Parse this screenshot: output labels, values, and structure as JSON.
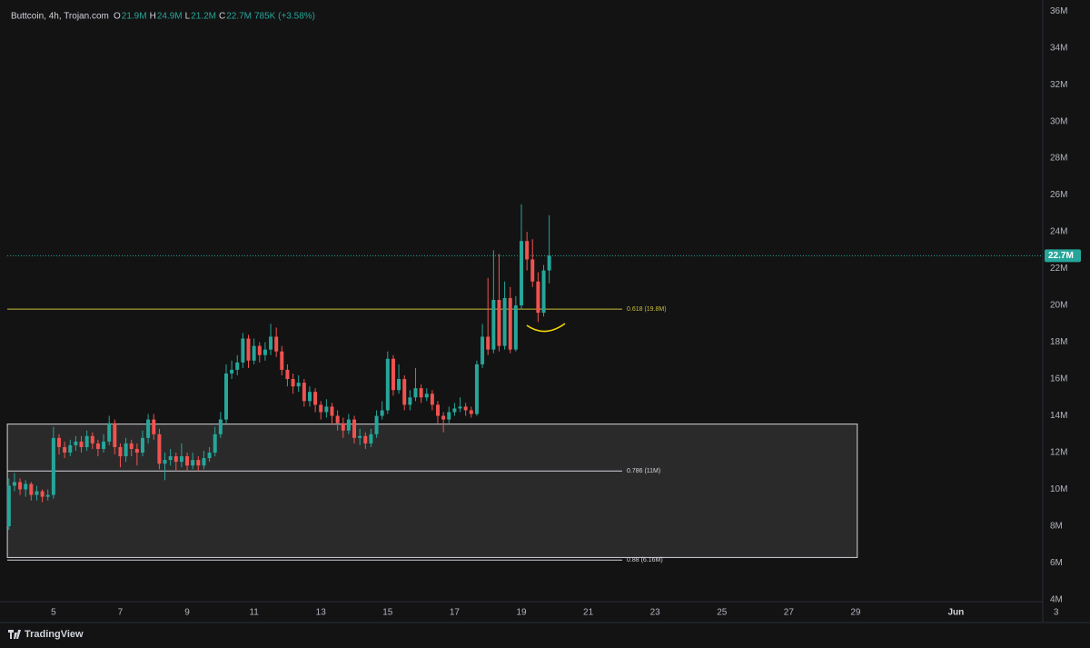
{
  "header": {
    "symbol": "Buttcoin, 4h, Trojan.com",
    "ohlc": [
      {
        "name": "O",
        "label": "21.9M"
      },
      {
        "name": "H",
        "label": "24.9M"
      },
      {
        "name": "L",
        "label": "21.2M"
      },
      {
        "name": "C",
        "label": "22.7M"
      }
    ],
    "change": "785K (+3.58%)"
  },
  "branding": "TradingView",
  "chart_data": {
    "type": "candlestick",
    "up_color": "#26a69a",
    "down_color": "#ef5350",
    "x": [
      3.667,
      3.833,
      4,
      4.167,
      4.333,
      4.5,
      4.667,
      4.833,
      5,
      5.167,
      5.333,
      5.5,
      5.667,
      5.833,
      6,
      6.167,
      6.333,
      6.5,
      6.667,
      6.833,
      7,
      7.167,
      7.333,
      7.5,
      7.667,
      7.833,
      8,
      8.167,
      8.333,
      8.5,
      8.667,
      8.833,
      9,
      9.167,
      9.333,
      9.5,
      9.667,
      9.833,
      10,
      10.167,
      10.333,
      10.5,
      10.667,
      10.833,
      11,
      11.167,
      11.333,
      11.5,
      11.667,
      11.833,
      12,
      12.167,
      12.333,
      12.5,
      12.667,
      12.833,
      13,
      13.167,
      13.333,
      13.5,
      13.667,
      13.833,
      14,
      14.167,
      14.333,
      14.5,
      14.667,
      14.833,
      15,
      15.167,
      15.333,
      15.5,
      15.667,
      15.833,
      16,
      16.167,
      16.333,
      16.5,
      16.667,
      16.833,
      17,
      17.167,
      17.333,
      17.5,
      17.667,
      17.833,
      18,
      18.167,
      18.333,
      18.5,
      18.667,
      18.833,
      19,
      19.167,
      19.333,
      19.5,
      19.667,
      19.833
    ],
    "open": [
      8.0,
      10.2,
      10.4,
      10.0,
      10.3,
      9.7,
      9.9,
      9.6,
      9.7,
      12.8,
      12.3,
      12.0,
      12.4,
      12.6,
      12.3,
      12.9,
      12.5,
      12.2,
      12.6,
      13.6,
      12.3,
      11.8,
      12.5,
      12.2,
      12.0,
      12.8,
      13.8,
      13.0,
      11.4,
      11.6,
      11.8,
      11.5,
      11.8,
      11.3,
      11.6,
      11.3,
      11.7,
      12.0,
      13.0,
      13.8,
      16.3,
      16.5,
      16.9,
      18.2,
      17.0,
      17.8,
      17.3,
      17.6,
      18.3,
      17.5,
      16.5,
      16.0,
      15.6,
      15.8,
      14.8,
      15.3,
      14.6,
      14.2,
      14.5,
      14.0,
      13.6,
      13.2,
      13.8,
      12.8,
      12.9,
      12.5,
      13.0,
      14.0,
      14.3,
      17.1,
      15.4,
      16.0,
      14.6,
      15.0,
      15.5,
      15.0,
      15.2,
      14.6,
      14.0,
      13.8,
      14.2,
      14.4,
      14.5,
      14.3,
      14.1,
      16.8,
      18.3,
      17.6,
      20.3,
      17.8,
      20.4,
      17.6,
      20.0,
      23.5,
      22.5,
      21.3,
      19.6,
      21.9
    ],
    "high": [
      10.6,
      10.9,
      10.6,
      10.5,
      10.4,
      10.2,
      10.0,
      10.0,
      13.4,
      13.0,
      12.6,
      12.7,
      12.9,
      12.9,
      13.2,
      13.1,
      12.7,
      13.0,
      14.0,
      13.8,
      12.5,
      12.8,
      12.7,
      12.5,
      13.2,
      14.1,
      14.1,
      13.3,
      12.0,
      12.2,
      12.0,
      12.5,
      12.0,
      12.0,
      11.8,
      12.1,
      12.3,
      13.4,
      14.2,
      16.8,
      17.0,
      17.3,
      18.5,
      18.4,
      18.2,
      18.0,
      18.0,
      19.0,
      18.8,
      17.8,
      16.8,
      16.3,
      16.2,
      16.0,
      15.6,
      15.5,
      14.8,
      14.9,
      14.7,
      14.3,
      13.9,
      14.1,
      14.0,
      13.3,
      13.1,
      13.3,
      14.3,
      14.8,
      17.5,
      17.3,
      16.8,
      16.2,
      15.4,
      16.6,
      15.7,
      15.5,
      15.4,
      14.8,
      14.2,
      14.5,
      14.7,
      15.0,
      14.7,
      14.5,
      17.0,
      19.0,
      21.5,
      23.0,
      22.8,
      21.3,
      21.0,
      20.5,
      25.5,
      24.0,
      23.6,
      21.8,
      22.2,
      24.9
    ],
    "low": [
      7.8,
      9.9,
      9.7,
      9.6,
      9.4,
      9.4,
      9.3,
      9.4,
      9.5,
      11.9,
      11.7,
      11.8,
      12.1,
      12.0,
      12.1,
      12.2,
      11.8,
      12.0,
      12.4,
      11.9,
      11.2,
      11.5,
      11.8,
      11.3,
      11.8,
      12.5,
      12.7,
      11.1,
      10.5,
      11.3,
      11.0,
      11.2,
      11.0,
      11.1,
      11.0,
      11.1,
      11.5,
      11.8,
      12.8,
      13.6,
      16.0,
      16.2,
      16.6,
      16.6,
      16.8,
      16.9,
      17.0,
      17.3,
      17.2,
      16.2,
      15.6,
      15.2,
      15.3,
      14.5,
      14.5,
      14.2,
      13.8,
      13.9,
      13.5,
      13.2,
      12.8,
      13.0,
      12.5,
      12.4,
      12.2,
      12.3,
      12.8,
      13.8,
      14.1,
      15.1,
      15.2,
      14.3,
      14.3,
      14.8,
      14.7,
      14.8,
      14.3,
      13.6,
      13.1,
      13.6,
      14.0,
      14.2,
      14.0,
      13.9,
      14.0,
      16.6,
      17.3,
      17.4,
      17.5,
      17.6,
      17.4,
      17.5,
      19.8,
      21.9,
      21.0,
      19.1,
      19.4,
      21.2
    ],
    "close": [
      10.2,
      10.4,
      10.0,
      10.3,
      9.7,
      9.9,
      9.6,
      9.7,
      12.8,
      12.3,
      12.0,
      12.4,
      12.6,
      12.3,
      12.9,
      12.5,
      12.2,
      12.6,
      13.6,
      12.3,
      11.8,
      12.5,
      12.2,
      12.0,
      12.8,
      13.8,
      13.0,
      11.4,
      11.6,
      11.8,
      11.5,
      11.8,
      11.3,
      11.6,
      11.3,
      11.7,
      12.0,
      13.0,
      13.8,
      16.3,
      16.5,
      16.9,
      18.2,
      17.0,
      17.8,
      17.3,
      17.6,
      18.3,
      17.5,
      16.5,
      16.0,
      15.6,
      15.8,
      14.8,
      15.3,
      14.6,
      14.2,
      14.5,
      14.0,
      13.6,
      13.2,
      13.8,
      12.8,
      12.9,
      12.5,
      13.0,
      14.0,
      14.3,
      17.1,
      15.4,
      16.0,
      14.6,
      15.0,
      15.5,
      15.0,
      15.2,
      14.6,
      14.0,
      13.8,
      14.2,
      14.4,
      14.5,
      14.3,
      14.1,
      16.8,
      18.3,
      17.6,
      20.3,
      17.8,
      20.4,
      17.6,
      20.0,
      23.5,
      22.5,
      21.3,
      19.6,
      21.9,
      22.7
    ],
    "xlim": [
      3.4,
      34.6
    ],
    "xticks": [
      5,
      7,
      9,
      11,
      13,
      15,
      17,
      19,
      21,
      23,
      25,
      27,
      29,
      {
        "value": 32,
        "label": "Jun"
      },
      {
        "value": 35,
        "label": "3"
      }
    ],
    "ylim": [
      3.9,
      36.6
    ],
    "yticks": [
      {
        "value": 4,
        "label": "4M"
      },
      {
        "value": 6,
        "label": "6M"
      },
      {
        "value": 8,
        "label": "8M"
      },
      {
        "value": 10,
        "label": "10M"
      },
      {
        "value": 12,
        "label": "12M"
      },
      {
        "value": 14,
        "label": "14M"
      },
      {
        "value": 16,
        "label": "16M"
      },
      {
        "value": 18,
        "label": "18M"
      },
      {
        "value": 20,
        "label": "20M"
      },
      {
        "value": 22,
        "label": "22M"
      },
      {
        "value": 24,
        "label": "24M"
      },
      {
        "value": 26,
        "label": "26M"
      },
      {
        "value": 28,
        "label": "28M"
      },
      {
        "value": 30,
        "label": "30M"
      },
      {
        "value": 32,
        "label": "32M"
      },
      {
        "value": 34,
        "label": "34M"
      },
      {
        "value": 36,
        "label": "36M"
      }
    ],
    "last_price": {
      "value": 22.7,
      "label": "22.7M",
      "color": "#26a69a"
    },
    "levels": [
      {
        "value": 19.8,
        "label": "0.618 (19.8M)",
        "color": "#c9bf3a"
      },
      {
        "value": 11,
        "label": "0.786 (11M)",
        "color": "#d1d4dc"
      },
      {
        "value": 6.16,
        "label": "0.88 (6.16M)",
        "color": "#d1d4dc"
      }
    ],
    "zone": {
      "x_start": 3.62,
      "x_end": 29.05,
      "top": 13.55,
      "bottom": 6.3
    }
  }
}
